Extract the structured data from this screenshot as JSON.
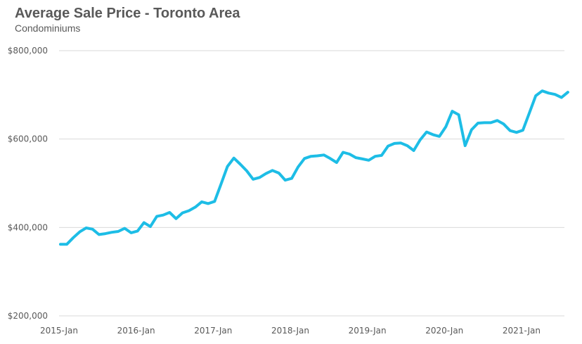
{
  "title": "Average Sale Price - Toronto Area",
  "subtitle": "Condominiums",
  "colors": {
    "series": "#1dbde6",
    "grid": "#d9d9d9",
    "text": "#595959"
  },
  "chart_data": {
    "type": "line",
    "title": "Average Sale Price - Toronto Area",
    "subtitle": "Condominiums",
    "xlabel": "",
    "ylabel": "",
    "x_start": "2015-Jan",
    "x_ticks": [
      "2015-Jan",
      "2016-Jan",
      "2017-Jan",
      "2018-Jan",
      "2019-Jan",
      "2020-Jan",
      "2021-Jan"
    ],
    "y_ticks": [
      200000,
      400000,
      600000,
      800000
    ],
    "y_tick_labels": [
      "$200,000",
      "$400,000",
      "$600,000",
      "$800,000"
    ],
    "ylim": [
      200000,
      800000
    ],
    "grid": true,
    "legend": "none",
    "series": [
      {
        "values": [
          362000,
          362000,
          377000,
          390000,
          399000,
          396000,
          384000,
          386000,
          389000,
          391000,
          398000,
          388000,
          392000,
          411000,
          402000,
          425000,
          428000,
          434000,
          420000,
          433000,
          438000,
          446000,
          458000,
          454000,
          459000,
          498000,
          538000,
          557000,
          543000,
          528000,
          509000,
          513000,
          522000,
          529000,
          523000,
          507000,
          511000,
          537000,
          556000,
          561000,
          562000,
          564000,
          556000,
          547000,
          570000,
          566000,
          558000,
          555000,
          552000,
          561000,
          563000,
          584000,
          590000,
          591000,
          585000,
          574000,
          598000,
          616000,
          610000,
          606000,
          628000,
          663000,
          655000,
          585000,
          621000,
          636000,
          637000,
          637000,
          642000,
          634000,
          619000,
          615000,
          620000,
          659000,
          698000,
          709000,
          704000,
          701000,
          694000,
          706000
        ]
      }
    ]
  }
}
